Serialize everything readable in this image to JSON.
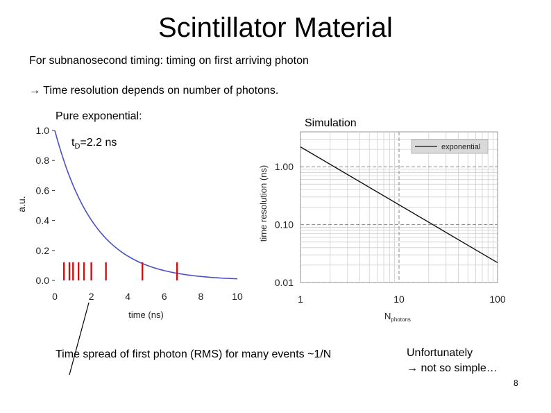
{
  "slide": {
    "title": "Scintillator Material",
    "line1": "For subnanosecond timing: timing on first arriving photon",
    "line2": "→ Time resolution depends on number of photons.",
    "pure_label": "Pure exponential:",
    "sim_label": "Simulation",
    "caption": "Time spread of first photon (RMS) for many events ~1/N",
    "unfortunately": "Unfortunately",
    "not_simple": "→ not so simple…",
    "page_number": "8"
  },
  "colors": {
    "curve": "#4a4fc0",
    "markers": "#cc1111",
    "sim_line": "#111111",
    "grid": "#cfcfcf"
  },
  "chart_data": [
    {
      "type": "line",
      "title": "Pure exponential:",
      "xlabel": "time (ns)",
      "ylabel": "a.u.",
      "annotation": {
        "symbol": "t",
        "subscript": "D",
        "text": "=2.2 ns"
      },
      "tau_ns": 2.2,
      "xlim": [
        0,
        10
      ],
      "ylim": [
        0,
        1.0
      ],
      "x_ticks": [
        "0",
        "2",
        "4",
        "6",
        "8",
        "10"
      ],
      "y_ticks": [
        "0.0",
        "0.2",
        "0.4",
        "0.6",
        "0.8",
        "1.0"
      ],
      "series": [
        {
          "name": "exp(-t/2.2)",
          "function": "exp(-t/tau)"
        }
      ],
      "photon_arrivals_ns": [
        0.5,
        0.8,
        1.0,
        1.3,
        1.6,
        2.0,
        2.8,
        4.8,
        6.7
      ]
    },
    {
      "type": "line",
      "title": "Simulation",
      "xlabel": "N",
      "xlabel_sub": "photons",
      "ylabel": "time resolution (ns)",
      "xscale": "log",
      "yscale": "log",
      "xlim": [
        1,
        100
      ],
      "ylim": [
        0.01,
        4
      ],
      "x_ticks": [
        "1",
        "10",
        "100"
      ],
      "y_ticks": [
        "0.01",
        "0.10",
        "1.00"
      ],
      "legend": "exponential",
      "series": [
        {
          "name": "exponential",
          "x": [
            1,
            100
          ],
          "y": [
            2.2,
            0.022
          ]
        }
      ]
    }
  ]
}
